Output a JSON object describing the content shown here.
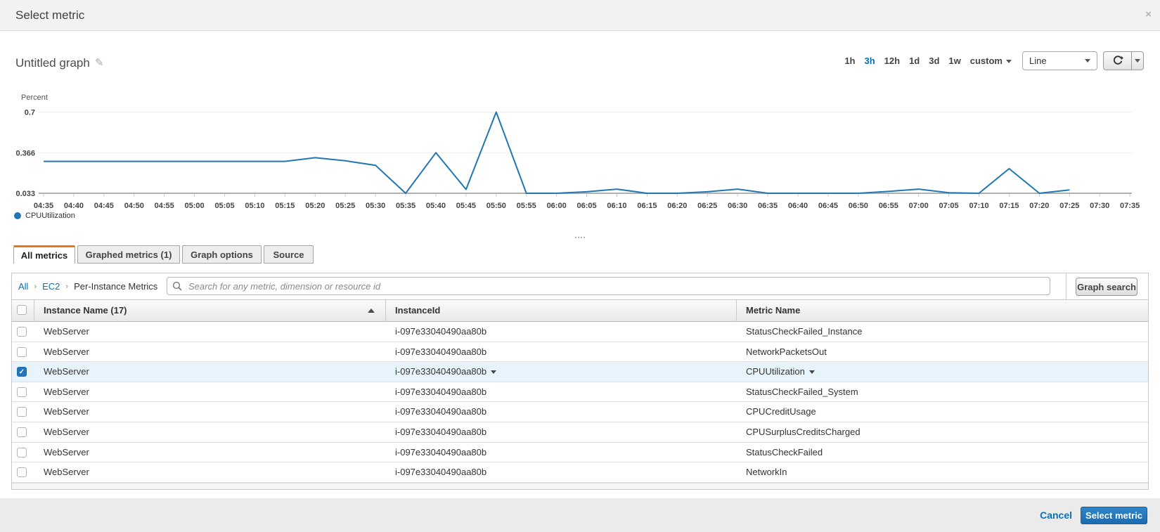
{
  "header": {
    "title": "Select metric",
    "close_icon": "×"
  },
  "graph": {
    "title": "Untitled graph",
    "time_ranges": [
      "1h",
      "3h",
      "12h",
      "1d",
      "3d",
      "1w"
    ],
    "selected_range": "3h",
    "custom_label": "custom",
    "chart_type_selected": "Line"
  },
  "chart_data": {
    "type": "line",
    "ylabel": "Percent",
    "yticks": [
      0.7,
      0.366,
      0.033
    ],
    "ylim": [
      0.033,
      0.7
    ],
    "x": [
      "04:35",
      "04:40",
      "04:45",
      "04:50",
      "04:55",
      "05:00",
      "05:05",
      "05:10",
      "05:15",
      "05:20",
      "05:25",
      "05:30",
      "05:35",
      "05:40",
      "05:45",
      "05:50",
      "05:55",
      "06:00",
      "06:05",
      "06:10",
      "06:15",
      "06:20",
      "06:25",
      "06:30",
      "06:35",
      "06:40",
      "06:45",
      "06:50",
      "06:55",
      "07:00",
      "07:05",
      "07:10",
      "07:15",
      "07:20",
      "07:25",
      "07:30",
      "07:35"
    ],
    "series": [
      {
        "name": "CPUUtilization",
        "color": "#1f77b4",
        "values": [
          0.295,
          0.295,
          0.295,
          0.295,
          0.295,
          0.295,
          0.295,
          0.295,
          0.295,
          0.325,
          0.3,
          0.263,
          0.033,
          0.366,
          0.065,
          0.7,
          0.033,
          0.033,
          0.045,
          0.067,
          0.033,
          0.033,
          0.045,
          0.067,
          0.033,
          0.033,
          0.033,
          0.033,
          0.048,
          0.067,
          0.037,
          0.033,
          0.235,
          0.033,
          0.06,
          null,
          null
        ]
      }
    ],
    "grid": true,
    "legend_position": "bottom-left"
  },
  "tabs": [
    {
      "label": "All metrics",
      "active": true
    },
    {
      "label": "Graphed metrics (1)",
      "active": false
    },
    {
      "label": "Graph options",
      "active": false
    },
    {
      "label": "Source",
      "active": false
    }
  ],
  "browser": {
    "breadcrumbs": [
      {
        "label": "All",
        "link": true
      },
      {
        "label": "EC2",
        "link": true
      },
      {
        "label": "Per-Instance Metrics",
        "link": false
      }
    ],
    "search_placeholder": "Search for any metric, dimension or resource id",
    "search_value": "",
    "graph_search_label": "Graph search"
  },
  "table": {
    "columns": [
      {
        "label": "Instance Name",
        "count": "(17)",
        "sort": "asc"
      },
      {
        "label": "InstanceId"
      },
      {
        "label": "Metric Name"
      }
    ],
    "rows": [
      {
        "checked": false,
        "selected": false,
        "instance_name": "WebServer",
        "instance_id": "i-097e33040490aa80b",
        "metric_name": "StatusCheckFailed_Instance"
      },
      {
        "checked": false,
        "selected": false,
        "instance_name": "WebServer",
        "instance_id": "i-097e33040490aa80b",
        "metric_name": "NetworkPacketsOut"
      },
      {
        "checked": true,
        "selected": true,
        "instance_name": "WebServer",
        "instance_id": "i-097e33040490aa80b",
        "metric_name": "CPUUtilization"
      },
      {
        "checked": false,
        "selected": false,
        "instance_name": "WebServer",
        "instance_id": "i-097e33040490aa80b",
        "metric_name": "StatusCheckFailed_System"
      },
      {
        "checked": false,
        "selected": false,
        "instance_name": "WebServer",
        "instance_id": "i-097e33040490aa80b",
        "metric_name": "CPUCreditUsage"
      },
      {
        "checked": false,
        "selected": false,
        "instance_name": "WebServer",
        "instance_id": "i-097e33040490aa80b",
        "metric_name": "CPUSurplusCreditsCharged"
      },
      {
        "checked": false,
        "selected": false,
        "instance_name": "WebServer",
        "instance_id": "i-097e33040490aa80b",
        "metric_name": "StatusCheckFailed"
      },
      {
        "checked": false,
        "selected": false,
        "instance_name": "WebServer",
        "instance_id": "i-097e33040490aa80b",
        "metric_name": "NetworkIn"
      }
    ]
  },
  "footer": {
    "cancel_label": "Cancel",
    "submit_label": "Select metric"
  }
}
